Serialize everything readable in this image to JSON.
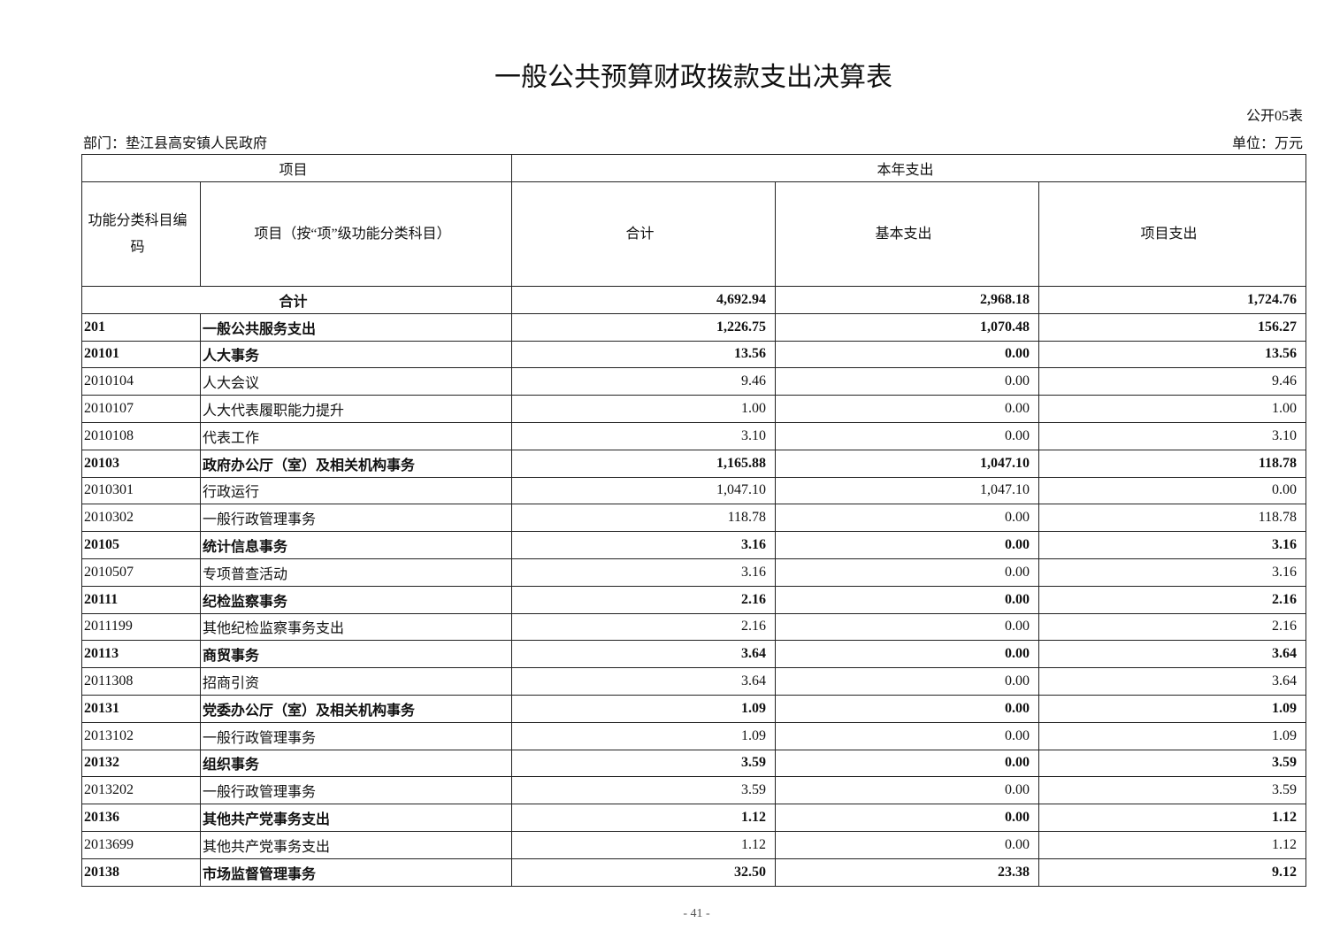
{
  "title": "一般公共预算财政拨款支出决算表",
  "form_no": "公开05表",
  "department": "部门：垫江县高安镇人民政府",
  "unit": "单位：万元",
  "header": {
    "item": "项目",
    "current_year": "本年支出",
    "code": "功能分类科目编码",
    "name": "项目（按“项”级功能分类科目）",
    "total": "合计",
    "basic": "基本支出",
    "project": "项目支出"
  },
  "total_row": {
    "label": "合计",
    "total": "4,692.94",
    "basic": "2,968.18",
    "project": "1,724.76"
  },
  "rows": [
    {
      "code": "201",
      "name": "一般公共服务支出",
      "total": "1,226.75",
      "basic": "1,070.48",
      "project": "156.27",
      "bold": true
    },
    {
      "code": "20101",
      "name": "人大事务",
      "total": "13.56",
      "basic": "0.00",
      "project": "13.56",
      "bold": true
    },
    {
      "code": "2010104",
      "name": "人大会议",
      "total": "9.46",
      "basic": "0.00",
      "project": "9.46",
      "bold": false
    },
    {
      "code": "2010107",
      "name": "人大代表履职能力提升",
      "total": "1.00",
      "basic": "0.00",
      "project": "1.00",
      "bold": false
    },
    {
      "code": "2010108",
      "name": "代表工作",
      "total": "3.10",
      "basic": "0.00",
      "project": "3.10",
      "bold": false
    },
    {
      "code": "20103",
      "name": "政府办公厅（室）及相关机构事务",
      "total": "1,165.88",
      "basic": "1,047.10",
      "project": "118.78",
      "bold": true
    },
    {
      "code": "2010301",
      "name": "行政运行",
      "total": "1,047.10",
      "basic": "1,047.10",
      "project": "0.00",
      "bold": false
    },
    {
      "code": "2010302",
      "name": "一般行政管理事务",
      "total": "118.78",
      "basic": "0.00",
      "project": "118.78",
      "bold": false
    },
    {
      "code": "20105",
      "name": "统计信息事务",
      "total": "3.16",
      "basic": "0.00",
      "project": "3.16",
      "bold": true
    },
    {
      "code": "2010507",
      "name": "专项普查活动",
      "total": "3.16",
      "basic": "0.00",
      "project": "3.16",
      "bold": false
    },
    {
      "code": "20111",
      "name": "纪检监察事务",
      "total": "2.16",
      "basic": "0.00",
      "project": "2.16",
      "bold": true
    },
    {
      "code": "2011199",
      "name": "其他纪检监察事务支出",
      "total": "2.16",
      "basic": "0.00",
      "project": "2.16",
      "bold": false
    },
    {
      "code": "20113",
      "name": "商贸事务",
      "total": "3.64",
      "basic": "0.00",
      "project": "3.64",
      "bold": true
    },
    {
      "code": "2011308",
      "name": "招商引资",
      "total": "3.64",
      "basic": "0.00",
      "project": "3.64",
      "bold": false
    },
    {
      "code": "20131",
      "name": "党委办公厅（室）及相关机构事务",
      "total": "1.09",
      "basic": "0.00",
      "project": "1.09",
      "bold": true
    },
    {
      "code": "2013102",
      "name": "一般行政管理事务",
      "total": "1.09",
      "basic": "0.00",
      "project": "1.09",
      "bold": false
    },
    {
      "code": "20132",
      "name": "组织事务",
      "total": "3.59",
      "basic": "0.00",
      "project": "3.59",
      "bold": true
    },
    {
      "code": "2013202",
      "name": "一般行政管理事务",
      "total": "3.59",
      "basic": "0.00",
      "project": "3.59",
      "bold": false
    },
    {
      "code": "20136",
      "name": "其他共产党事务支出",
      "total": "1.12",
      "basic": "0.00",
      "project": "1.12",
      "bold": true
    },
    {
      "code": "2013699",
      "name": "其他共产党事务支出",
      "total": "1.12",
      "basic": "0.00",
      "project": "1.12",
      "bold": false
    },
    {
      "code": "20138",
      "name": "市场监督管理事务",
      "total": "32.50",
      "basic": "23.38",
      "project": "9.12",
      "bold": true
    }
  ],
  "page_number": "- 41 -"
}
